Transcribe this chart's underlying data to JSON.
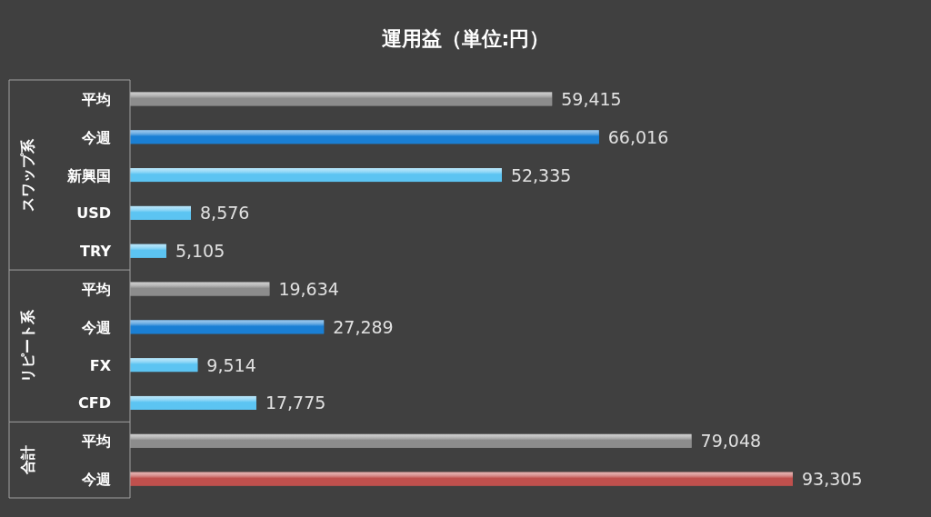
{
  "chart_data": {
    "type": "bar",
    "orientation": "horizontal",
    "title": "運用益（単位:円）",
    "categories": [
      "平均",
      "今週",
      "新興国",
      "USD",
      "TRY",
      "平均",
      "今週",
      "FX",
      "CFD",
      "平均",
      "今週"
    ],
    "values": [
      59415,
      66016,
      52335,
      8576,
      5105,
      19634,
      27289,
      9514,
      17775,
      79048,
      93305
    ],
    "value_labels": [
      "59,415",
      "66,016",
      "52,335",
      "8,576",
      "5,105",
      "19,634",
      "27,289",
      "9,514",
      "17,775",
      "79,048",
      "93,305"
    ],
    "colors": [
      "#8c8c8c",
      "#1a7fd4",
      "#5cc4f2",
      "#5cc4f2",
      "#5cc4f2",
      "#8c8c8c",
      "#1a7fd4",
      "#5cc4f2",
      "#5cc4f2",
      "#8c8c8c",
      "#c0504d"
    ],
    "annotations": [
      "スワップ系",
      "リピート系",
      "合計"
    ],
    "tick_labels": "y"
  }
}
